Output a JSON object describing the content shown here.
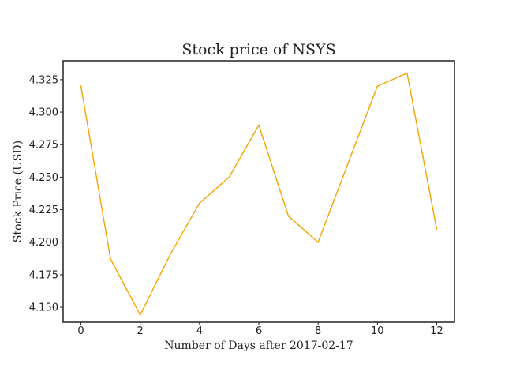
{
  "chart_data": {
    "type": "line",
    "title": "Stock price of NSYS",
    "xlabel": "Number of Days after 2017-02-17",
    "ylabel": "Stock Price (USD)",
    "xlim": [
      -0.6,
      12.6
    ],
    "ylim": [
      4.1385,
      4.3395
    ],
    "xticks": [
      0,
      2,
      4,
      6,
      8,
      10,
      12
    ],
    "xtick_labels": [
      "0",
      "2",
      "4",
      "6",
      "8",
      "10",
      "12"
    ],
    "yticks": [
      4.15,
      4.175,
      4.2,
      4.225,
      4.25,
      4.275,
      4.3,
      4.325
    ],
    "ytick_labels": [
      "4.150",
      "4.175",
      "4.200",
      "4.225",
      "4.250",
      "4.275",
      "4.300",
      "4.325"
    ],
    "grid": false,
    "series": [
      {
        "color": "#f5a300",
        "x": [
          0,
          1,
          2,
          3,
          4,
          5,
          6,
          7,
          8,
          9,
          10,
          11,
          12
        ],
        "y": [
          4.32,
          4.187,
          4.144,
          4.19,
          4.23,
          4.25,
          4.29,
          4.22,
          4.2,
          4.26,
          4.32,
          4.33,
          4.21
        ]
      }
    ]
  }
}
